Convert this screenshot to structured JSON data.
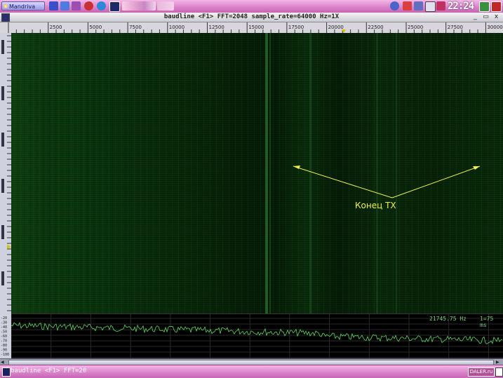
{
  "taskbar": {
    "start_label": "Mandriva",
    "clock": "22:24"
  },
  "window": {
    "title": "baudline  <F1> FFT=2048 sample_rate=64000 Hz=1X",
    "buttons": [
      "_",
      "▭",
      "x"
    ]
  },
  "ruler": {
    "ticks": [
      "2500",
      "5000",
      "7500",
      "10000",
      "12500",
      "15000",
      "17500",
      "20000",
      "22500",
      "25000",
      "27500",
      "30000 Hz"
    ]
  },
  "annotation": {
    "label": "Конец TX"
  },
  "spectrum": {
    "left_readout": "",
    "freq_readout": "21745.75 Hz",
    "mode_readout": "1=75 ms",
    "db_labels": [
      "-20",
      "-30",
      "-40",
      "-50",
      "-60",
      "-70",
      "-80",
      "-90",
      "-100"
    ]
  },
  "bottombar": {
    "task_label": "baudline  <F1> FFT=20",
    "tray_logo": "DALER.ru"
  },
  "colors": {
    "accent": "#d97fc8",
    "spectrogram": "#0b3a0e",
    "annotation": "#f0f04a",
    "trace": "#5fd85f"
  }
}
